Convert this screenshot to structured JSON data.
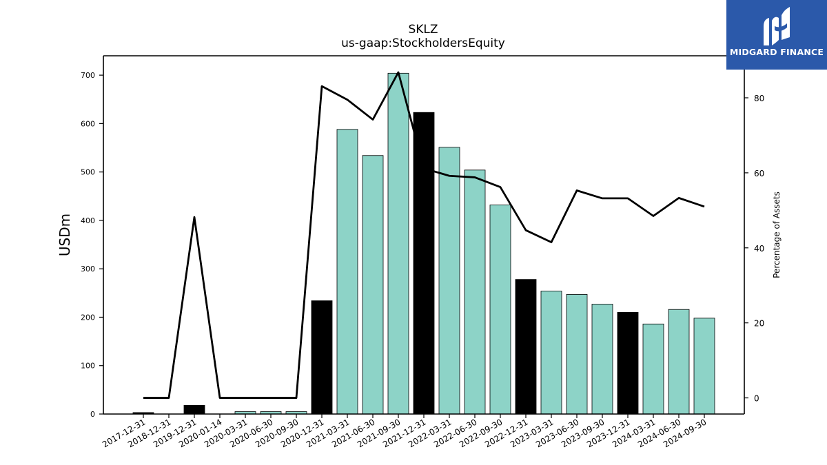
{
  "chart_data": {
    "type": "bar",
    "title": "SKLZ",
    "subtitle": "us-gaap:StockholdersEquity",
    "ylabel": "USDm",
    "y2label": "Percentage of Assets",
    "ylim": [
      0,
      740
    ],
    "y2lim": [
      -4.3,
      91.2
    ],
    "yticks": [
      0,
      100,
      200,
      300,
      400,
      500,
      600,
      700
    ],
    "y2ticks": [
      0,
      20,
      40,
      60,
      80
    ],
    "categories": [
      "2017-12-31",
      "2018-12-31",
      "2019-12-31",
      "2020-01-14",
      "2020-03-31",
      "2020-06-30",
      "2020-09-30",
      "2020-12-31",
      "2021-03-31",
      "2021-06-30",
      "2021-09-30",
      "2021-12-31",
      "2022-03-31",
      "2022-06-30",
      "2022-09-30",
      "2022-12-31",
      "2023-03-31",
      "2023-06-30",
      "2023-09-30",
      "2023-12-31",
      "2024-03-31",
      "2024-06-30",
      "2024-09-30"
    ],
    "series": [
      {
        "type": "bar",
        "axis": "left",
        "values": [
          3,
          0,
          18,
          0,
          5,
          5,
          5,
          234,
          588,
          534,
          704,
          623,
          551,
          504,
          432,
          278,
          254,
          247,
          227,
          210,
          186,
          216,
          198
        ],
        "annual": [
          true,
          true,
          true,
          false,
          false,
          false,
          false,
          true,
          false,
          false,
          false,
          true,
          false,
          false,
          false,
          true,
          false,
          false,
          false,
          true,
          false,
          false,
          false
        ]
      },
      {
        "type": "line",
        "axis": "right",
        "values": [
          0,
          0,
          48.2,
          0,
          0,
          0,
          0,
          83.1,
          79.5,
          74.2,
          86.8,
          61.2,
          59.2,
          58.8,
          56.2,
          44.7,
          41.5,
          55.3,
          53.2,
          53.2,
          48.5,
          53.3,
          51.0
        ]
      }
    ],
    "colors": {
      "annual_bar": "#000000",
      "quarter_bar": "#8dd3c7",
      "line": "#000000"
    }
  },
  "logo": {
    "text": "MIDGARD FINANCE",
    "background": "#2b59aa"
  }
}
